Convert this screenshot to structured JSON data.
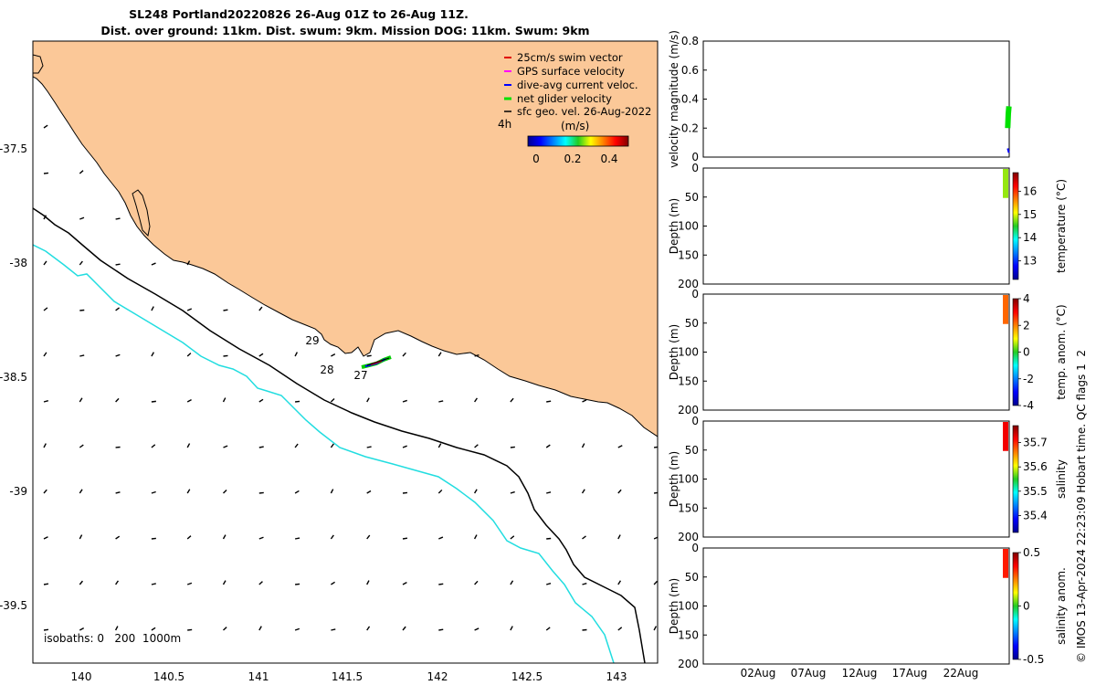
{
  "title": {
    "line1": "SL248 Portland20220826 26-Aug 01Z to 26-Aug 11Z.",
    "line2": "Dist. over ground: 11km. Dist. swum: 9km. Mission DOG: 11km. Swum: 9km"
  },
  "map": {
    "legend": [
      {
        "label": "25cm/s swim vector",
        "color": "#e00000"
      },
      {
        "label": "GPS surface velocity",
        "color": "#ff00ff"
      },
      {
        "label": "dive-avg current veloc.",
        "color": "#0000ff"
      },
      {
        "label": "net glider velocity",
        "color": "#00e000"
      },
      {
        "label": "sfc geo. vel. 26-Aug-2022",
        "color": "#000000"
      }
    ],
    "legend_time_tag": "4h",
    "colorbar_title": "(m/s)",
    "colorbar_ticks": [
      "0",
      "0.2",
      "0.4"
    ],
    "isobaths_label": "isobaths: 0   200  1000m",
    "xticks": [
      "140",
      "140.5",
      "141",
      "141.5",
      "142",
      "142.5",
      "143"
    ],
    "yticks": [
      "-37.5",
      "-38",
      "-38.5",
      "-39",
      "-39.5"
    ],
    "day_labels": [
      "29",
      "28",
      "27"
    ],
    "land_color": "#fbc898",
    "isobath_200_color": "#000000",
    "isobath_1000_color": "#22dde0"
  },
  "chart_data": [
    {
      "type": "line",
      "panel": "velocity",
      "ylabel": "velocity magnitude (m/s)",
      "ylim": [
        0,
        0.8
      ],
      "yticks": [
        "0",
        "0.2",
        "0.4",
        "0.6",
        "0.8"
      ],
      "series": [
        {
          "name": "net glider velocity",
          "color": "#00e000",
          "x": [
            0.995,
            0.997,
            0.999
          ],
          "values": [
            0.2,
            0.3,
            0.35
          ]
        },
        {
          "name": "dive-avg current veloc.",
          "color": "#0000ff",
          "x": [
            0.995,
            0.999
          ],
          "values": [
            0.06,
            0.03
          ]
        }
      ]
    },
    {
      "type": "heatmap",
      "panel": "temperature",
      "ylabel": "Depth (m)",
      "yticks": [
        "0",
        "50",
        "100",
        "150",
        "200"
      ],
      "colorbar_label": "temperature (°C)",
      "colorbar_ticks": [
        "13",
        "14",
        "15",
        "16"
      ],
      "colorbar_range": [
        12.2,
        16.8
      ],
      "depth_range": [
        0,
        50
      ],
      "observed_value": 14.8
    },
    {
      "type": "heatmap",
      "panel": "temp. anom.",
      "ylabel": "Depth (m)",
      "yticks": [
        "0",
        "50",
        "100",
        "150",
        "200"
      ],
      "colorbar_label": "temp. anom. (°C)",
      "colorbar_ticks": [
        "-4",
        "-2",
        "0",
        "2",
        "4"
      ],
      "colorbar_range": [
        -4,
        4
      ],
      "depth_range": [
        0,
        50
      ],
      "observed_value": 2.2
    },
    {
      "type": "heatmap",
      "panel": "salinity",
      "ylabel": "Depth (m)",
      "yticks": [
        "0",
        "50",
        "100",
        "150",
        "200"
      ],
      "colorbar_label": "salinity",
      "colorbar_ticks": [
        "35.4",
        "35.5",
        "35.6",
        "35.7"
      ],
      "colorbar_range": [
        35.33,
        35.77
      ],
      "depth_range": [
        0,
        50
      ],
      "observed_value": 35.72
    },
    {
      "type": "heatmap",
      "panel": "salinity anom.",
      "ylabel": "Depth (m)",
      "yticks": [
        "0",
        "50",
        "100",
        "150",
        "200"
      ],
      "colorbar_label": "salinity anom.",
      "colorbar_ticks": [
        "-0.5",
        "0",
        "0.5"
      ],
      "colorbar_range": [
        -0.5,
        0.5
      ],
      "depth_range": [
        0,
        50
      ],
      "observed_value": 0.35
    }
  ],
  "time_axis": {
    "ticks": [
      "02Aug",
      "07Aug",
      "12Aug",
      "17Aug",
      "22Aug"
    ]
  },
  "footer": {
    "stamp": "© IMOS 13-Apr-2024 22:23:09 Hobart time. QC flags 1  2"
  }
}
